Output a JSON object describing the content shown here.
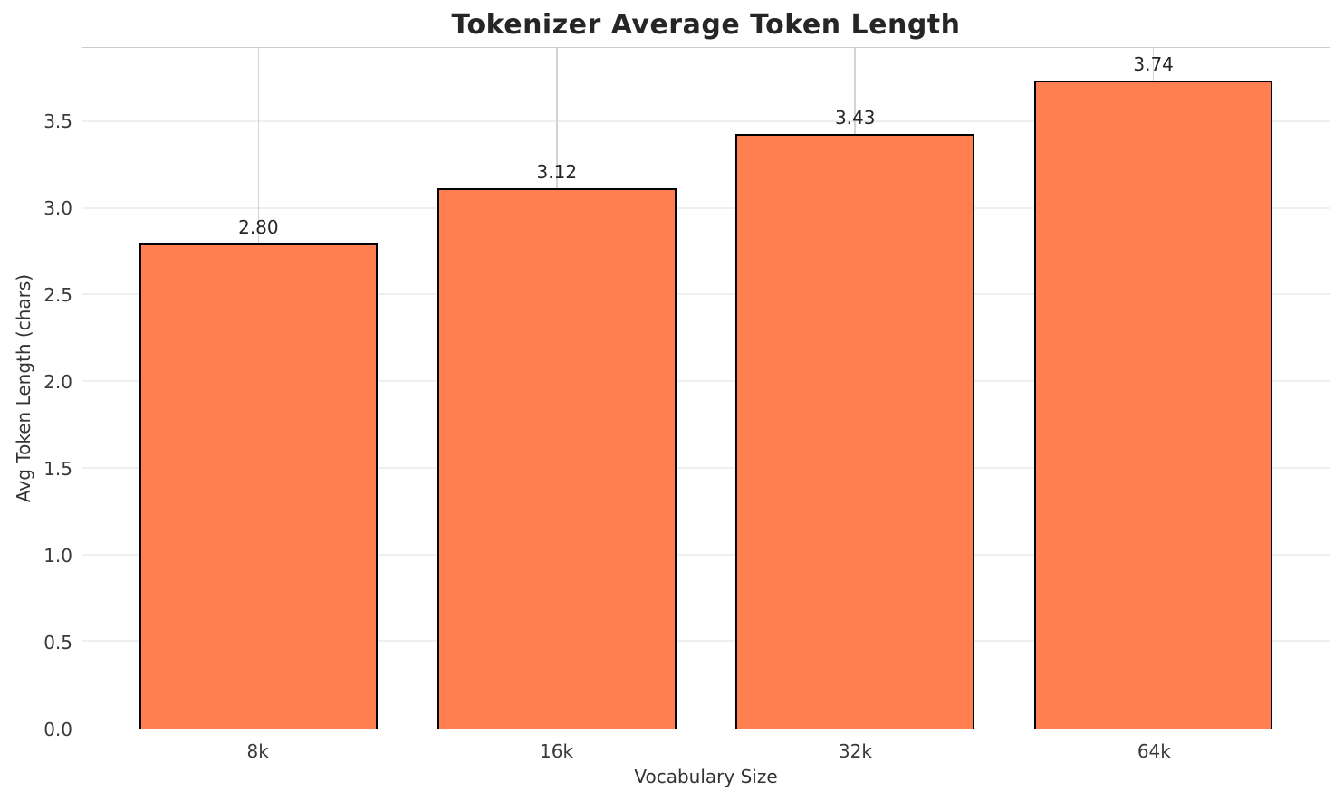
{
  "chart_data": {
    "type": "bar",
    "title": "Tokenizer Average Token Length",
    "xlabel": "Vocabulary Size",
    "ylabel": "Avg Token Length (chars)",
    "categories": [
      "8k",
      "16k",
      "32k",
      "64k"
    ],
    "values": [
      2.8,
      3.12,
      3.43,
      3.74
    ],
    "bar_labels": [
      "2.80",
      "3.12",
      "3.43",
      "3.74"
    ],
    "ytick_labels": [
      "0.0",
      "0.5",
      "1.0",
      "1.5",
      "2.0",
      "2.5",
      "3.0",
      "3.5"
    ],
    "ytick_values": [
      0.0,
      0.5,
      1.0,
      1.5,
      2.0,
      2.5,
      3.0,
      3.5
    ],
    "ylim": [
      0,
      3.927
    ],
    "grid": "both",
    "legend": "none",
    "colors": {
      "bar_fill": "#FF7F50",
      "bar_edge": "#000000",
      "spine": "#cccccc",
      "grid_h": "#efefef",
      "grid_v": "#d4d4d4",
      "title_text": "#262626",
      "tick_text": "#3a3a3a"
    }
  }
}
